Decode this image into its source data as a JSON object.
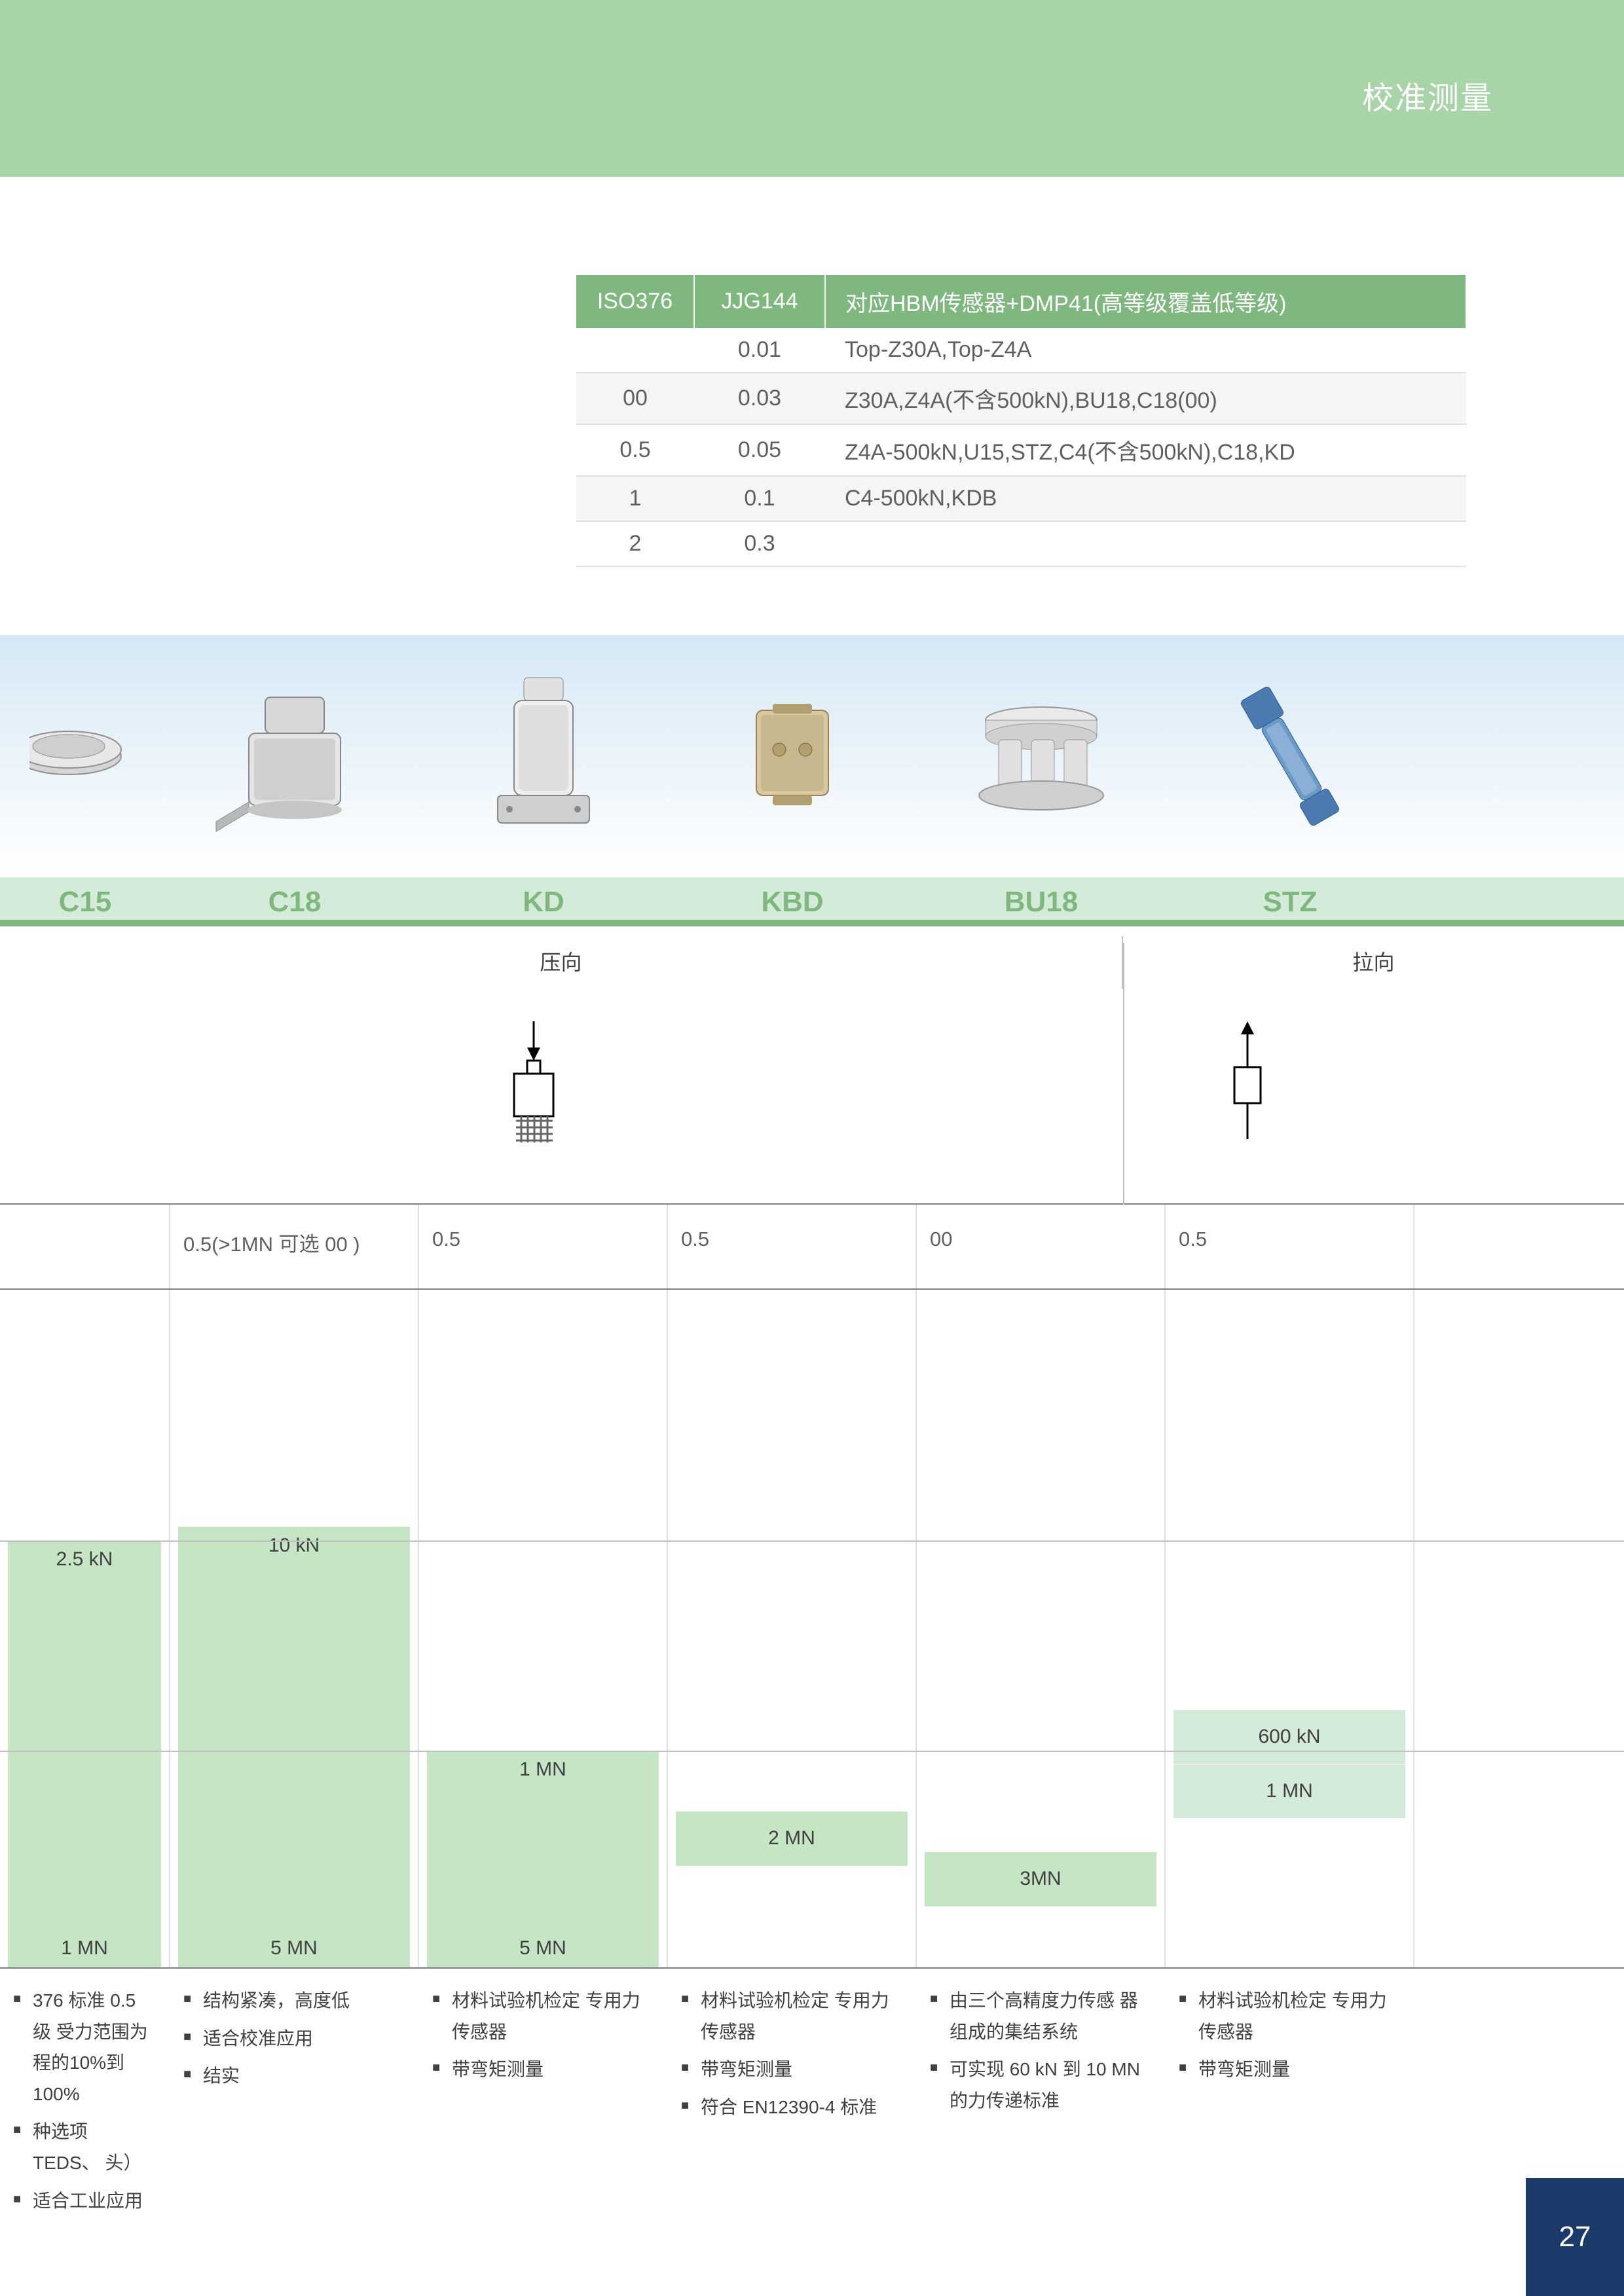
{
  "header": {
    "title": "校准测量"
  },
  "top_table": {
    "headers": [
      "ISO376",
      "JJG144",
      "对应HBM传感器+DMP41(高等级覆盖低等级)"
    ],
    "rows": [
      {
        "iso": "",
        "jjg": "0.01",
        "desc": "Top-Z30A,Top-Z4A"
      },
      {
        "iso": "00",
        "jjg": "0.03",
        "desc": "Z30A,Z4A(不含500kN),BU18,C18(00)"
      },
      {
        "iso": "0.5",
        "jjg": "0.05",
        "desc": "Z4A-500kN,U15,STZ,C4(不含500kN),C18,KD"
      },
      {
        "iso": "1",
        "jjg": "0.1",
        "desc": "C4-500kN,KDB"
      },
      {
        "iso": "2",
        "jjg": "0.3",
        "desc": ""
      }
    ]
  },
  "products": [
    "C15",
    "C18",
    "KD",
    "KBD",
    "BU18",
    "STZ"
  ],
  "direction": {
    "press": "压向",
    "pull": "拉向"
  },
  "accuracy": {
    "c15": "",
    "c18": "0.5(>1MN 可选 00 )",
    "kd": "0.5",
    "kbd": "0.5",
    "bu18": "00",
    "stz": "0.5"
  },
  "bars": {
    "c15": [
      {
        "top_pct": 37,
        "bot_pct": 68,
        "label": "2.5 kN",
        "pos": "top"
      },
      {
        "top_pct": 68,
        "bot_pct": 100,
        "label": "1 MN",
        "pos": "bottom"
      }
    ],
    "c18": [
      {
        "top_pct": 35,
        "bot_pct": 100,
        "label_top": "10 kN",
        "label_bot": "5 MN"
      }
    ],
    "kd": [
      {
        "top_pct": 68,
        "bot_pct": 100,
        "label_top": "1 MN",
        "label_bot": "5 MN"
      }
    ],
    "kbd": [
      {
        "top_pct": 77,
        "bot_pct": 85,
        "label": "2 MN"
      }
    ],
    "bu18": [
      {
        "top_pct": 83,
        "bot_pct": 91,
        "label": "3MN"
      }
    ],
    "stz": [
      {
        "top_pct": 62,
        "bot_pct": 70,
        "label": "600 kN",
        "light": true
      },
      {
        "top_pct": 70,
        "bot_pct": 78,
        "label": "1 MN",
        "light": true
      }
    ]
  },
  "gridlines_pct": [
    37,
    68
  ],
  "features": {
    "c15": [
      "376 标准 0.5 级 受力范围为 程的10%到100%",
      "种选项 TEDS、 头）",
      "适合工业应用"
    ],
    "c18": [
      "结构紧凑，高度低",
      "适合校准应用",
      "结实"
    ],
    "kd": [
      "材料试验机检定 专用力传感器",
      "带弯矩测量"
    ],
    "kbd": [
      "材料试验机检定 专用力传感器",
      "带弯矩测量",
      "符合 EN12390-4 标准"
    ],
    "bu18": [
      "由三个高精度力传感 器组成的集结系统",
      "可实现 60 kN 到 10 MN 的力传递标准"
    ],
    "stz": [
      "材料试验机检定 专用力传感器",
      "带弯矩测量"
    ]
  },
  "page_number": "27",
  "colors": {
    "header_band": "#a8d5a8",
    "th_bg": "#7fb87f",
    "label_bg": "#d5ebd9",
    "bar_bg": "#c5e5c5",
    "page_tab": "#1a3a6a"
  }
}
